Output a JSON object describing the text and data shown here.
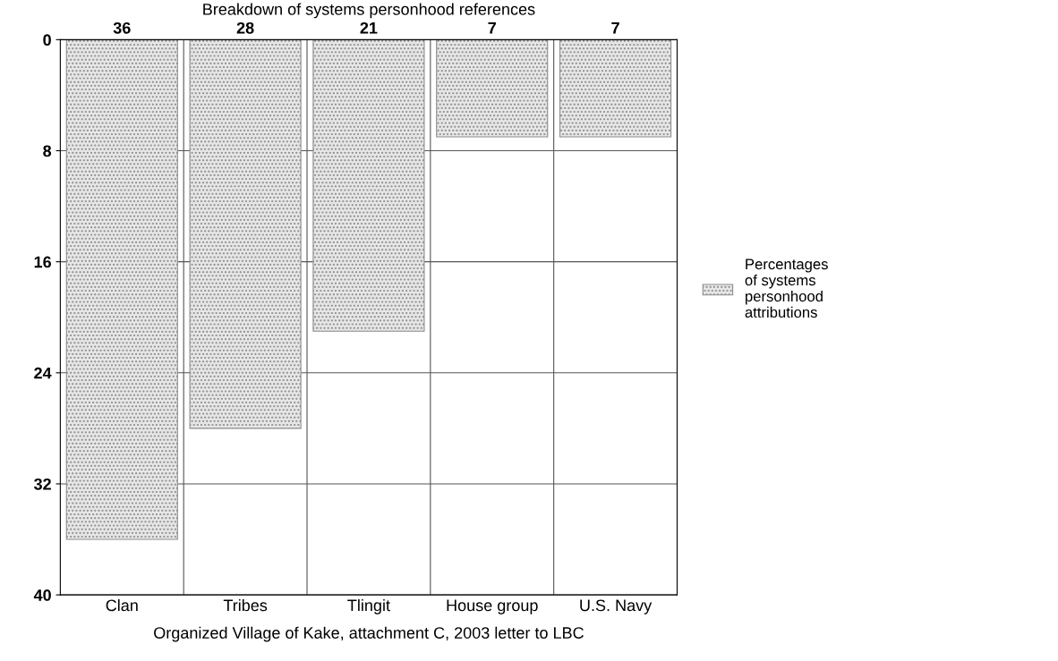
{
  "chart_data": {
    "type": "bar",
    "title": "Breakdown of systems personhood references",
    "categories": [
      "Clan",
      "Tribes",
      "Tlingit",
      "House group",
      "U.S. Navy"
    ],
    "series": [
      {
        "name": "Percentages of systems personhood attributions",
        "color": "#8c8c8c",
        "values": [
          36,
          28,
          21,
          7,
          7
        ]
      }
    ],
    "ylim": [
      40,
      0
    ],
    "yticks": [
      0,
      8,
      16,
      24,
      32,
      40
    ],
    "grid": true,
    "legend": "right",
    "data_labels": true,
    "xlabel": "Organized Village of Kake, attachment C, 2003 letter to LBC"
  }
}
